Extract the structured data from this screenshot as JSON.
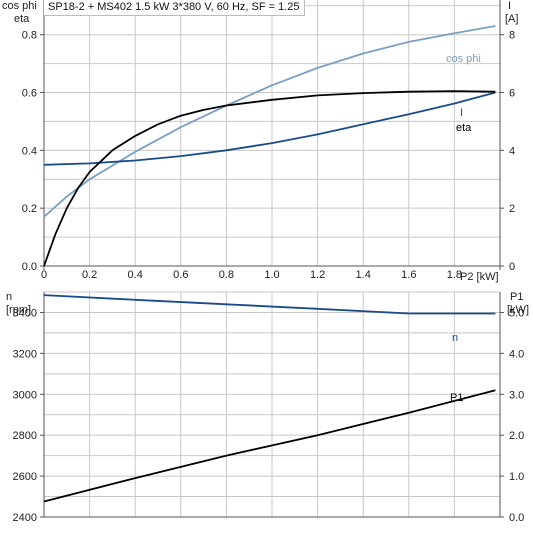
{
  "colors": {
    "black": "#000000",
    "navy": "#1a4b8a",
    "lightblue": "#7a9fc4",
    "grid": "#c8c8c8",
    "axis": "#555555"
  },
  "chart_data": [
    {
      "type": "line",
      "title": "SP18-2 + MS402   1.5 kW   3*380 V, 60 Hz, SF = 1.25",
      "xlabel": "P2 [kW]",
      "ylabel_left_line1": "cos phi",
      "ylabel_left_line2": "eta",
      "ylabel_right_line1": "I",
      "ylabel_right_line2": "[A]",
      "xlim": [
        0,
        2.0
      ],
      "ylim_left": [
        0,
        0.92
      ],
      "ylim_right": [
        0,
        9.2
      ],
      "x_ticks": [
        0,
        0.2,
        0.4,
        0.6,
        0.8,
        1.0,
        1.2,
        1.4,
        1.6,
        1.8
      ],
      "x_tick_labels": [
        "0",
        "0.2",
        "0.4",
        "0.6",
        "0.8",
        "1.0",
        "1.2",
        "1.4",
        "1.6",
        "1.8"
      ],
      "y_left_ticks": [
        0,
        0.2,
        0.4,
        0.6,
        0.8
      ],
      "y_left_tick_labels": [
        "0.0",
        "0.2",
        "0.4",
        "0.6",
        "0.8"
      ],
      "y_right_ticks": [
        0,
        2,
        4,
        6,
        8
      ],
      "y_right_tick_labels": [
        "0",
        "2",
        "4",
        "6",
        "8"
      ],
      "grid": true,
      "series": [
        {
          "name": "cos phi",
          "axis": "left",
          "color": "#7a9fc4",
          "x": [
            0,
            0.1,
            0.2,
            0.4,
            0.6,
            0.8,
            1.0,
            1.2,
            1.4,
            1.6,
            1.8,
            1.98
          ],
          "y": [
            0.17,
            0.24,
            0.3,
            0.395,
            0.48,
            0.555,
            0.625,
            0.685,
            0.735,
            0.775,
            0.805,
            0.83
          ]
        },
        {
          "name": "I",
          "axis": "right",
          "color": "#1a4b8a",
          "x": [
            0,
            0.2,
            0.4,
            0.6,
            0.8,
            1.0,
            1.2,
            1.4,
            1.6,
            1.8,
            1.98
          ],
          "y": [
            3.5,
            3.55,
            3.65,
            3.8,
            4.0,
            4.25,
            4.55,
            4.9,
            5.25,
            5.62,
            6.0
          ]
        },
        {
          "name": "eta",
          "axis": "left",
          "color": "#000000",
          "x": [
            0,
            0.05,
            0.1,
            0.15,
            0.2,
            0.3,
            0.4,
            0.5,
            0.6,
            0.7,
            0.8,
            1.0,
            1.2,
            1.4,
            1.6,
            1.8,
            1.98
          ],
          "y": [
            0.0,
            0.11,
            0.2,
            0.27,
            0.325,
            0.4,
            0.45,
            0.49,
            0.52,
            0.54,
            0.555,
            0.575,
            0.59,
            0.598,
            0.603,
            0.605,
            0.603
          ]
        }
      ]
    },
    {
      "type": "line",
      "xlim": [
        0,
        2.0
      ],
      "ylabel_left_line1": "n",
      "ylabel_left_line2": "[rpm]",
      "ylabel_right_line1": "P1",
      "ylabel_right_line2": "[kW]",
      "ylim_left": [
        2400,
        3500
      ],
      "ylim_right": [
        0.0,
        5.5
      ],
      "y_left_ticks": [
        2400,
        2600,
        2800,
        3000,
        3200,
        3400
      ],
      "y_left_tick_labels": [
        "2400",
        "2600",
        "2800",
        "3000",
        "3200",
        "3400"
      ],
      "y_right_ticks": [
        0.0,
        1.0,
        2.0,
        3.0,
        4.0,
        5.0
      ],
      "y_right_tick_labels": [
        "0.0",
        "1.0",
        "2.0",
        "3.0",
        "4.0",
        "5.0"
      ],
      "grid": true,
      "series": [
        {
          "name": "n",
          "axis": "left",
          "color": "#1a4b8a",
          "x": [
            0,
            0.4,
            0.8,
            1.2,
            1.6,
            1.98
          ],
          "y": [
            3485,
            3462,
            3440,
            3418,
            3395,
            3395
          ]
        },
        {
          "name": "P1",
          "axis": "right",
          "color": "#000000",
          "x": [
            0,
            0.4,
            0.8,
            1.2,
            1.6,
            1.98
          ],
          "y": [
            0.38,
            0.95,
            1.5,
            2.0,
            2.55,
            3.1
          ]
        }
      ]
    }
  ]
}
